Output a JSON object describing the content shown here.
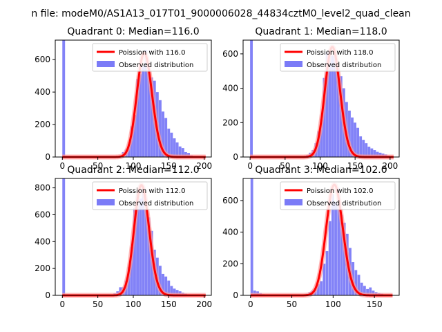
{
  "suptitle": "n file: modeM0/AS1A13_017T01_9000006028_44834cztM0_level2_quad_clean",
  "colors": {
    "histogram": "#7b7bf7",
    "poisson_curve": "#ff0000",
    "poisson_glow": "#ff9999"
  },
  "chart_data": [
    {
      "type": "bar",
      "title": "Quadrant 0: Median=116.0",
      "xlim": [
        -10,
        210
      ],
      "ylim": [
        0,
        720
      ],
      "xticks": [
        0,
        50,
        100,
        150,
        200
      ],
      "yticks": [
        0,
        200,
        400,
        600
      ],
      "legend_position": "top-right",
      "legend": [
        "Poission with 116.0",
        "Observed distribution"
      ],
      "poisson_mean": 116.0,
      "poisson_peak": 640,
      "bin_width": 4.1,
      "bins": [
        [
          0,
          720
        ],
        [
          4,
          5
        ],
        [
          8,
          3
        ],
        [
          12,
          2
        ],
        [
          16,
          2
        ],
        [
          20,
          2
        ],
        [
          24,
          2
        ],
        [
          28,
          2
        ],
        [
          32,
          2
        ],
        [
          36,
          2
        ],
        [
          40,
          2
        ],
        [
          44,
          2
        ],
        [
          48,
          2
        ],
        [
          52,
          2
        ],
        [
          56,
          2
        ],
        [
          60,
          2
        ],
        [
          64,
          2
        ],
        [
          68,
          2
        ],
        [
          72,
          3
        ],
        [
          76,
          5
        ],
        [
          80,
          10
        ],
        [
          84,
          30
        ],
        [
          88,
          45
        ],
        [
          92,
          80
        ],
        [
          96,
          190
        ],
        [
          100,
          260
        ],
        [
          104,
          480
        ],
        [
          108,
          510
        ],
        [
          112,
          560
        ],
        [
          116,
          660
        ],
        [
          120,
          540
        ],
        [
          124,
          490
        ],
        [
          128,
          470
        ],
        [
          132,
          400
        ],
        [
          136,
          350
        ],
        [
          140,
          280
        ],
        [
          144,
          240
        ],
        [
          148,
          175
        ],
        [
          152,
          150
        ],
        [
          156,
          115
        ],
        [
          160,
          90
        ],
        [
          164,
          65
        ],
        [
          168,
          55
        ],
        [
          172,
          30
        ],
        [
          176,
          25
        ],
        [
          180,
          10
        ],
        [
          184,
          5
        ],
        [
          188,
          3
        ],
        [
          192,
          1
        ]
      ]
    },
    {
      "type": "bar",
      "title": "Quadrant 1: Median=118.0",
      "xlim": [
        -10,
        213
      ],
      "ylim": [
        0,
        680
      ],
      "xticks": [
        0,
        50,
        100,
        150,
        200
      ],
      "yticks": [
        0,
        200,
        400,
        600
      ],
      "legend_position": "top-right",
      "legend": [
        "Poission with 118.0",
        "Observed distribution"
      ],
      "poisson_mean": 118.0,
      "poisson_peak": 640,
      "bin_width": 4.1,
      "bins": [
        [
          0,
          680
        ],
        [
          4,
          5
        ],
        [
          8,
          3
        ],
        [
          12,
          2
        ],
        [
          16,
          2
        ],
        [
          20,
          2
        ],
        [
          24,
          2
        ],
        [
          28,
          2
        ],
        [
          32,
          2
        ],
        [
          36,
          2
        ],
        [
          40,
          2
        ],
        [
          44,
          2
        ],
        [
          48,
          2
        ],
        [
          52,
          2
        ],
        [
          56,
          2
        ],
        [
          60,
          2
        ],
        [
          64,
          2
        ],
        [
          68,
          2
        ],
        [
          72,
          3
        ],
        [
          76,
          5
        ],
        [
          80,
          12
        ],
        [
          84,
          25
        ],
        [
          88,
          40
        ],
        [
          92,
          80
        ],
        [
          96,
          150
        ],
        [
          100,
          220
        ],
        [
          104,
          460
        ],
        [
          108,
          610
        ],
        [
          112,
          620
        ],
        [
          116,
          590
        ],
        [
          120,
          600
        ],
        [
          124,
          520
        ],
        [
          128,
          470
        ],
        [
          132,
          400
        ],
        [
          136,
          320
        ],
        [
          140,
          270
        ],
        [
          144,
          230
        ],
        [
          148,
          200
        ],
        [
          152,
          170
        ],
        [
          156,
          120
        ],
        [
          160,
          100
        ],
        [
          164,
          80
        ],
        [
          168,
          60
        ],
        [
          172,
          50
        ],
        [
          176,
          40
        ],
        [
          180,
          30
        ],
        [
          184,
          25
        ],
        [
          188,
          20
        ],
        [
          192,
          15
        ],
        [
          196,
          8
        ]
      ]
    },
    {
      "type": "bar",
      "title": "Quadrant 2: Median=112.0",
      "xlim": [
        -10,
        210
      ],
      "ylim": [
        0,
        870
      ],
      "xticks": [
        0,
        50,
        100,
        150,
        200
      ],
      "yticks": [
        0,
        200,
        400,
        600,
        800
      ],
      "legend_position": "top-right",
      "legend": [
        "Poission with 112.0",
        "Observed distribution"
      ],
      "poisson_mean": 112.0,
      "poisson_peak": 820,
      "bin_width": 4.1,
      "bins": [
        [
          0,
          870
        ],
        [
          4,
          5
        ],
        [
          8,
          3
        ],
        [
          12,
          2
        ],
        [
          16,
          2
        ],
        [
          20,
          2
        ],
        [
          24,
          2
        ],
        [
          28,
          2
        ],
        [
          32,
          2
        ],
        [
          36,
          2
        ],
        [
          40,
          2
        ],
        [
          44,
          2
        ],
        [
          48,
          2
        ],
        [
          52,
          2
        ],
        [
          56,
          2
        ],
        [
          60,
          2
        ],
        [
          64,
          2
        ],
        [
          68,
          3
        ],
        [
          72,
          15
        ],
        [
          76,
          30
        ],
        [
          80,
          60
        ],
        [
          84,
          60
        ],
        [
          88,
          110
        ],
        [
          92,
          210
        ],
        [
          96,
          360
        ],
        [
          100,
          650
        ],
        [
          104,
          750
        ],
        [
          108,
          720
        ],
        [
          112,
          810
        ],
        [
          116,
          640
        ],
        [
          120,
          580
        ],
        [
          124,
          480
        ],
        [
          128,
          340
        ],
        [
          132,
          280
        ],
        [
          136,
          220
        ],
        [
          140,
          160
        ],
        [
          144,
          140
        ],
        [
          148,
          110
        ],
        [
          152,
          70
        ],
        [
          156,
          50
        ],
        [
          160,
          40
        ],
        [
          164,
          30
        ],
        [
          168,
          20
        ],
        [
          172,
          12
        ],
        [
          176,
          8
        ],
        [
          180,
          5
        ],
        [
          184,
          3
        ],
        [
          188,
          2
        ],
        [
          192,
          2
        ],
        [
          196,
          1
        ]
      ]
    },
    {
      "type": "bar",
      "title": "Quadrant 3: Median=102.0",
      "xlim": [
        -9,
        180
      ],
      "ylim": [
        0,
        740
      ],
      "xticks": [
        0,
        50,
        100,
        150
      ],
      "yticks": [
        0,
        200,
        400,
        600
      ],
      "legend_position": "top-right",
      "legend": [
        "Poission with 102.0",
        "Observed distribution"
      ],
      "poisson_mean": 102.0,
      "poisson_peak": 700,
      "bin_width": 3.45,
      "bins": [
        [
          0,
          740
        ],
        [
          3.5,
          30
        ],
        [
          7,
          25
        ],
        [
          10.5,
          15
        ],
        [
          14,
          8
        ],
        [
          17.5,
          5
        ],
        [
          21,
          3
        ],
        [
          24.5,
          2
        ],
        [
          28,
          2
        ],
        [
          31.5,
          2
        ],
        [
          35,
          2
        ],
        [
          38.5,
          2
        ],
        [
          42,
          2
        ],
        [
          45.5,
          2
        ],
        [
          49,
          2
        ],
        [
          52.5,
          2
        ],
        [
          56,
          2
        ],
        [
          59.5,
          3
        ],
        [
          63,
          5
        ],
        [
          66.5,
          10
        ],
        [
          70,
          20
        ],
        [
          73.5,
          30
        ],
        [
          77,
          45
        ],
        [
          80.5,
          70
        ],
        [
          84,
          90
        ],
        [
          87.5,
          200
        ],
        [
          91,
          280
        ],
        [
          94.5,
          470
        ],
        [
          98,
          640
        ],
        [
          101.5,
          590
        ],
        [
          105,
          680
        ],
        [
          108.5,
          510
        ],
        [
          112,
          460
        ],
        [
          115.5,
          390
        ],
        [
          119,
          300
        ],
        [
          122.5,
          210
        ],
        [
          126,
          160
        ],
        [
          129.5,
          130
        ],
        [
          133,
          80
        ],
        [
          136.5,
          60
        ],
        [
          140,
          40
        ],
        [
          143.5,
          50
        ],
        [
          147,
          30
        ],
        [
          150.5,
          20
        ],
        [
          154,
          15
        ],
        [
          157.5,
          10
        ],
        [
          161,
          5
        ],
        [
          164.5,
          3
        ],
        [
          168,
          2
        ]
      ]
    }
  ]
}
